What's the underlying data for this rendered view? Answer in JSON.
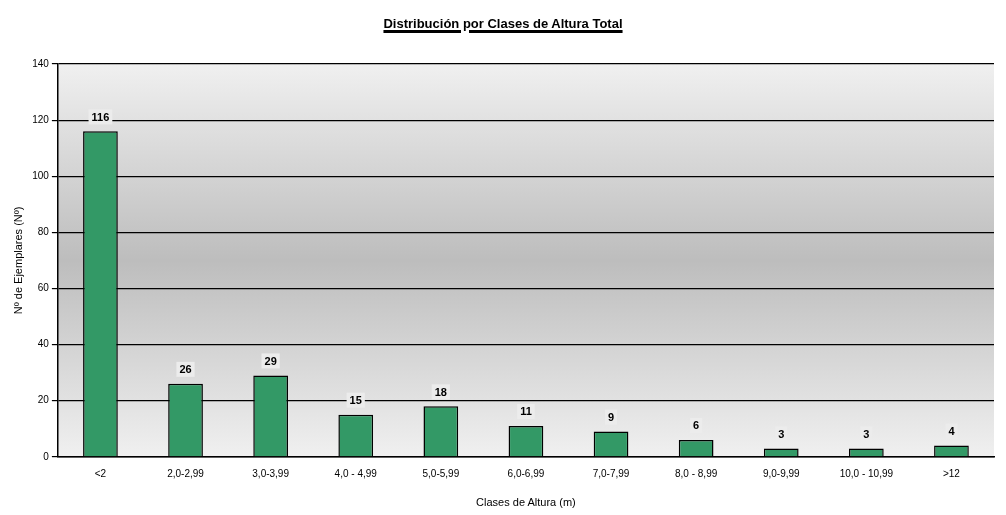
{
  "chart_data": {
    "type": "bar",
    "title": "Distribución por Clases de Altura Total",
    "xlabel": "Clases de Altura (m)",
    "ylabel": "Nº de Ejemplares (Nº)",
    "categories": [
      "<2",
      "2,0-2,99",
      "3,0-3,99",
      "4,0 - 4,99",
      "5,0-5,99",
      "6,0-6,99",
      "7,0-7,99",
      "8,0 - 8,99",
      "9,0-9,99",
      "10,0 - 10,99",
      ">12"
    ],
    "values": [
      116,
      26,
      29,
      15,
      18,
      11,
      9,
      6,
      3,
      3,
      4
    ],
    "color": "#339966",
    "ylim": [
      0,
      140
    ],
    "yticks": [
      0,
      20,
      40,
      60,
      80,
      100,
      120,
      140
    ],
    "grid": "y",
    "data_labels": true,
    "legend": false
  }
}
